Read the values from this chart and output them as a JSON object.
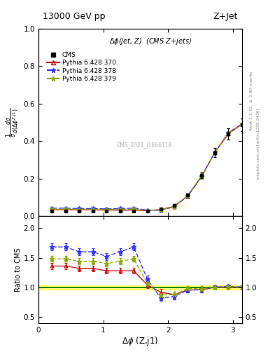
{
  "title_left": "13000 GeV pp",
  "title_right": "Z+Jet",
  "ylabel_main": "$\\frac{1}{\\sigma}\\frac{d\\sigma}{d(\\Delta\\phi^{Z,j1})}$",
  "ylabel_ratio": "Ratio to CMS",
  "xlabel": "$\\Delta\\phi$ (Z,j1)",
  "annotation_main": "$\\Delta\\phi$(jet, Z)  (CMS Z+jets)",
  "watermark": "CMS_2021_I1866118",
  "right_label_top": "Rivet 3.1.10, $\\geq$ 2.9M events",
  "right_label_bot": "mcplots.cern.ch [arXiv:1306.3436]",
  "cms_x": [
    0.21,
    0.42,
    0.63,
    0.84,
    1.05,
    1.26,
    1.47,
    1.68,
    1.885,
    2.094,
    2.304,
    2.513,
    2.722,
    2.932,
    3.14
  ],
  "cms_y": [
    0.025,
    0.025,
    0.025,
    0.025,
    0.025,
    0.025,
    0.025,
    0.028,
    0.038,
    0.058,
    0.112,
    0.218,
    0.338,
    0.438,
    0.488
  ],
  "cms_yerr": [
    0.002,
    0.002,
    0.002,
    0.002,
    0.002,
    0.002,
    0.002,
    0.003,
    0.003,
    0.005,
    0.008,
    0.015,
    0.024,
    0.03,
    0.034
  ],
  "p370_y": [
    0.034,
    0.034,
    0.033,
    0.033,
    0.032,
    0.032,
    0.032,
    0.029,
    0.035,
    0.051,
    0.107,
    0.21,
    0.338,
    0.44,
    0.49
  ],
  "p378_y": [
    0.042,
    0.042,
    0.04,
    0.04,
    0.038,
    0.04,
    0.042,
    0.032,
    0.031,
    0.049,
    0.107,
    0.209,
    0.34,
    0.446,
    0.492
  ],
  "p379_y": [
    0.037,
    0.037,
    0.036,
    0.036,
    0.035,
    0.036,
    0.037,
    0.03,
    0.033,
    0.051,
    0.11,
    0.213,
    0.339,
    0.443,
    0.491
  ],
  "ratio_p370": [
    1.36,
    1.36,
    1.32,
    1.32,
    1.28,
    1.28,
    1.28,
    1.04,
    0.92,
    0.88,
    0.955,
    0.963,
    1.0,
    1.005,
    1.004
  ],
  "ratio_p370_err": [
    0.05,
    0.05,
    0.05,
    0.05,
    0.05,
    0.05,
    0.05,
    0.05,
    0.05,
    0.05,
    0.04,
    0.04,
    0.03,
    0.03,
    0.03
  ],
  "ratio_p378": [
    1.68,
    1.68,
    1.6,
    1.6,
    1.52,
    1.6,
    1.68,
    1.14,
    0.82,
    0.845,
    0.955,
    0.958,
    1.006,
    1.018,
    1.008
  ],
  "ratio_p378_err": [
    0.06,
    0.06,
    0.06,
    0.06,
    0.06,
    0.06,
    0.06,
    0.06,
    0.05,
    0.05,
    0.04,
    0.04,
    0.03,
    0.03,
    0.03
  ],
  "ratio_p379": [
    1.48,
    1.48,
    1.44,
    1.44,
    1.4,
    1.44,
    1.48,
    1.07,
    0.87,
    0.879,
    0.982,
    0.977,
    1.003,
    1.011,
    1.006
  ],
  "ratio_p379_err": [
    0.05,
    0.05,
    0.05,
    0.05,
    0.05,
    0.05,
    0.05,
    0.05,
    0.05,
    0.05,
    0.04,
    0.04,
    0.03,
    0.03,
    0.03
  ],
  "cms_color": "#000000",
  "p370_color": "#cc0000",
  "p378_color": "#3333ff",
  "p379_color": "#88aa00",
  "ylim_main": [
    0.0,
    1.0
  ],
  "yticks_main": [
    0.0,
    0.2,
    0.4,
    0.6,
    0.8,
    1.0
  ],
  "ylim_ratio": [
    0.4,
    2.2
  ],
  "yticks_ratio": [
    0.5,
    1.0,
    1.5,
    2.0
  ],
  "xlim": [
    0.0,
    3.14159
  ],
  "xticks": [
    0,
    1,
    2,
    3
  ],
  "legend_entries": [
    "CMS",
    "Pythia 6.428 370",
    "Pythia 6.428 378",
    "Pythia 6.428 379"
  ]
}
